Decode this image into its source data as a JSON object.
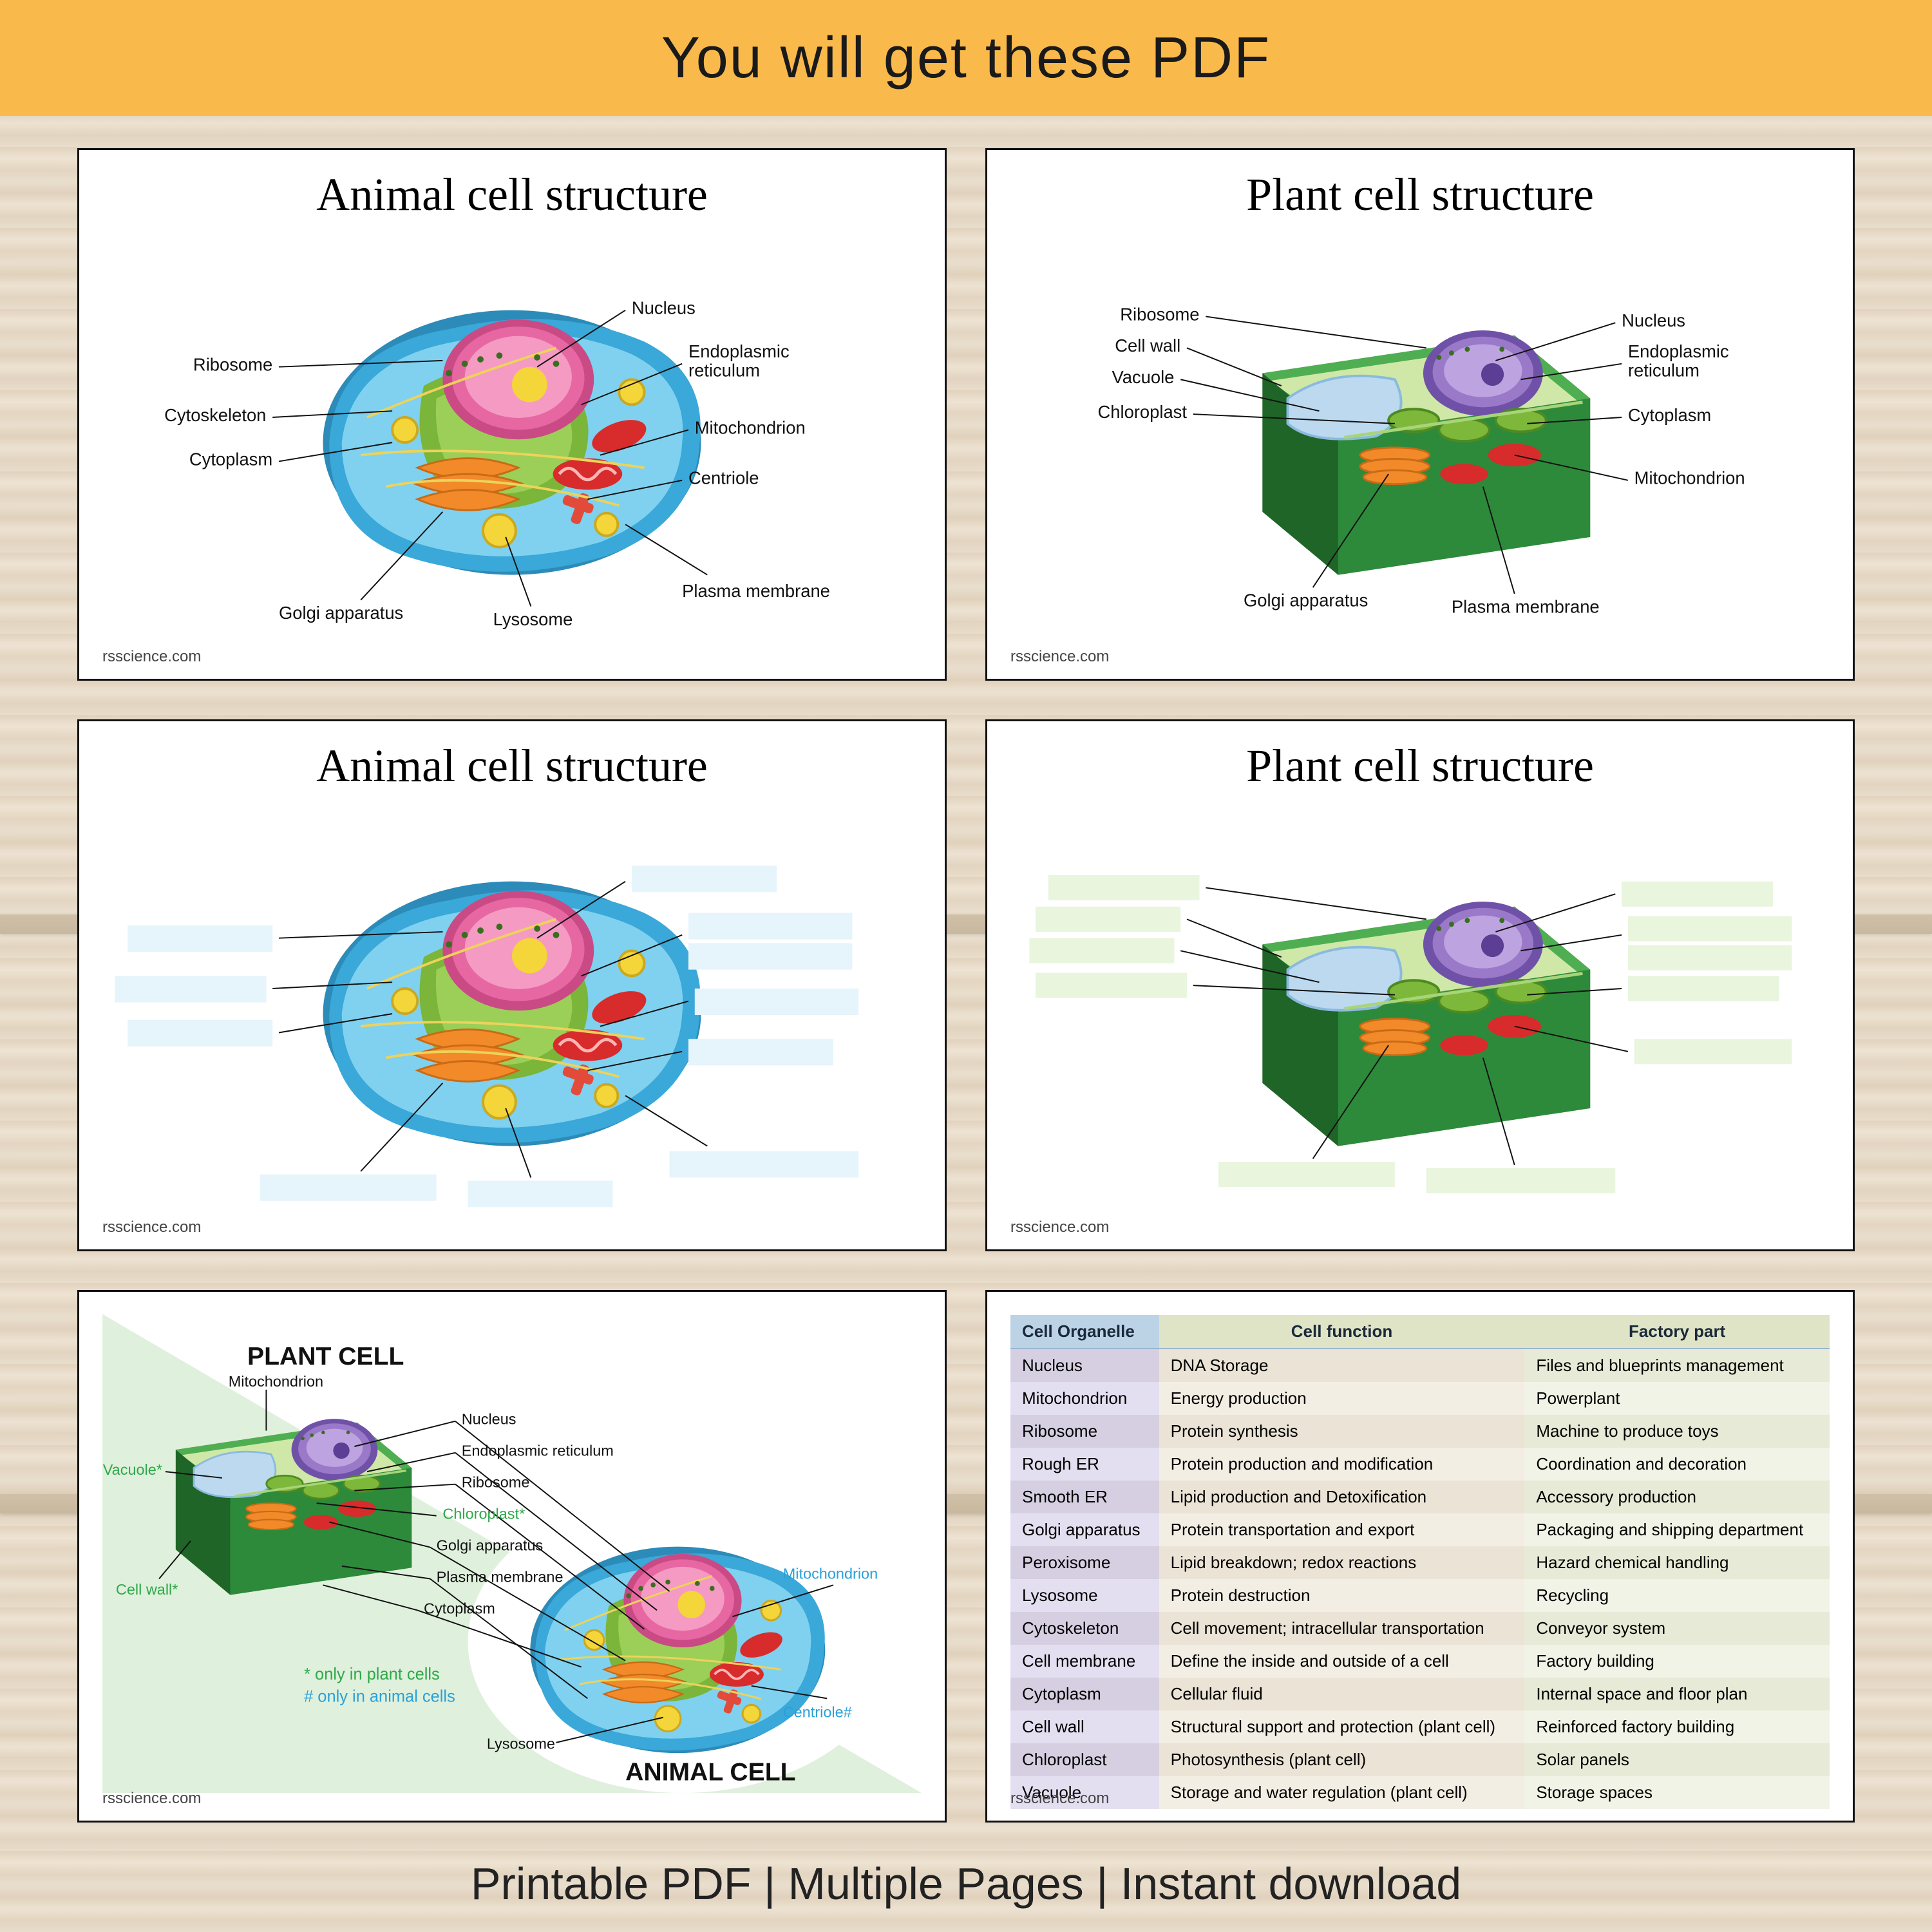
{
  "banner_top": "You will get these PDF",
  "banner_bottom": "Printable PDF  |  Multiple Pages | Instant download",
  "watermark": "rsscience.com",
  "animal_title": "Animal cell structure",
  "plant_title": "Plant cell structure",
  "animal_labels": {
    "nucleus": "Nucleus",
    "er": "Endoplasmic\nreticulum",
    "mito": "Mitochondrion",
    "centriole": "Centriole",
    "plasma": "Plasma membrane",
    "lysosome": "Lysosome",
    "golgi": "Golgi apparatus",
    "cytoplasm": "Cytoplasm",
    "cytoskeleton": "Cytoskeleton",
    "ribosome": "Ribosome"
  },
  "plant_labels": {
    "ribosome": "Ribosome",
    "cellwall": "Cell wall",
    "vacuole": "Vacuole",
    "chloroplast": "Chloroplast",
    "golgi": "Golgi apparatus",
    "plasma": "Plasma membrane",
    "mito": "Mitochondrion",
    "cytoplasm": "Cytoplasm",
    "er": "Endoplasmic\nreticulum",
    "nucleus": "Nucleus"
  },
  "blank_box_colors": {
    "animal": "#e6f4fb",
    "plant": "#eaf5de"
  },
  "compare": {
    "plant_title": "PLANT CELL",
    "animal_title": "ANIMAL CELL",
    "note_plant": "* only in plant cells",
    "note_animal": "# only in animal cells",
    "labels": {
      "mito": "Mitochondrion",
      "nucleus": "Nucleus",
      "er": "Endoplasmic reticulum",
      "ribosome": "Ribosome",
      "chloroplast": "Chloroplast*",
      "golgi": "Golgi apparatus",
      "plasma": "Plasma membrane",
      "cytoplasm": "Cytoplasm",
      "lysosome": "Lysosome",
      "vacuole": "Vacuole*",
      "cellwall": "Cell wall*",
      "centriole": "Centriole#"
    }
  },
  "table": {
    "headers": [
      "Cell Organelle",
      "Cell function",
      "Factory part"
    ],
    "rows": [
      [
        "Nucleus",
        "DNA Storage",
        "Files and blueprints management"
      ],
      [
        "Mitochondrion",
        "Energy production",
        "Powerplant"
      ],
      [
        "Ribosome",
        "Protein synthesis",
        "Machine to produce toys"
      ],
      [
        "Rough ER",
        "Protein production and modification",
        "Coordination and decoration"
      ],
      [
        "Smooth ER",
        "Lipid production and Detoxification",
        "Accessory production"
      ],
      [
        "Golgi apparatus",
        "Protein transportation and export",
        "Packaging and shipping department"
      ],
      [
        "Peroxisome",
        "Lipid breakdown; redox reactions",
        "Hazard chemical handling"
      ],
      [
        "Lysosome",
        "Protein destruction",
        "Recycling"
      ],
      [
        "Cytoskeleton",
        "Cell movement; intracellular transportation",
        "Conveyor system"
      ],
      [
        "Cell membrane",
        "Define the inside and outside of a cell",
        "Factory building"
      ],
      [
        "Cytoplasm",
        "Cellular fluid",
        "Internal space and floor plan"
      ],
      [
        "Cell wall",
        "Structural support and protection (plant cell)",
        "Reinforced factory building"
      ],
      [
        "Chloroplast",
        "Photosynthesis (plant cell)",
        "Solar panels"
      ],
      [
        "Vacuole",
        "Storage and water regulation (plant cell)",
        "Storage spaces"
      ]
    ]
  },
  "palette": {
    "animal_membrane": "#3aa8d8",
    "animal_cyto": "#7fd1ef",
    "animal_nucleus": "#e767a3",
    "animal_nucleolus": "#f4d53a",
    "animal_er": "#7bb53a",
    "animal_golgi": "#f28a2a",
    "animal_mito": "#d82b2b",
    "animal_centriole": "#e24b3a",
    "plant_wall": "#2d8a3a",
    "plant_wall_top": "#4fae52",
    "plant_cyto": "#cfe8a8",
    "plant_vacuole": "#bcd9ef",
    "plant_nucleus": "#9a79c9",
    "plant_chloro": "#7db83a"
  }
}
